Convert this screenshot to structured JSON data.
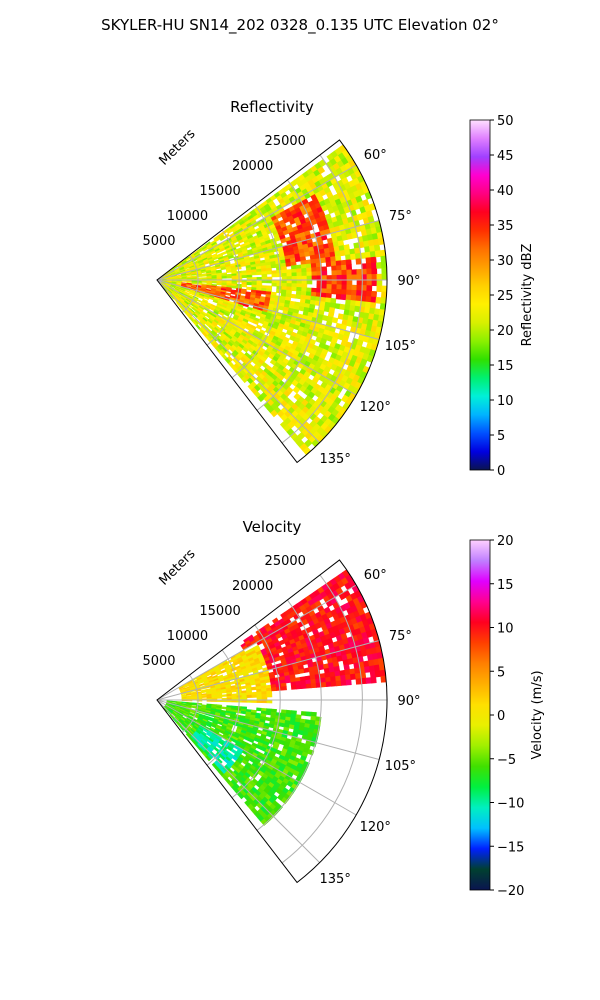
{
  "figure": {
    "suptitle": "SKYLER-HU  SN14_202  0328_0.135 UTC Elevation 02°"
  },
  "chart_data": [
    {
      "type": "heatmap",
      "subtype": "polar-sector",
      "title": "Reflectivity",
      "range_axis_label": "Meters",
      "range_ticks": [
        5000,
        10000,
        15000,
        20000,
        25000
      ],
      "range_tick_labels": [
        "5000",
        "10000",
        "15000",
        "20000",
        "25000"
      ],
      "range_max": 28000,
      "theta_range_deg": [
        52.5,
        142.5
      ],
      "theta_ticks": [
        60,
        75,
        90,
        105,
        120,
        135
      ],
      "theta_tick_labels": [
        "60°",
        "75°",
        "90°",
        "105°",
        "120°",
        "135°"
      ],
      "grid": true,
      "colorbar": {
        "label": "Reflectivity dBZ",
        "min": 0,
        "max": 50,
        "ticks": [
          0,
          5,
          10,
          15,
          20,
          25,
          30,
          35,
          40,
          45,
          50
        ],
        "tick_labels": [
          "0",
          "5",
          "10",
          "15",
          "20",
          "25",
          "30",
          "35",
          "40",
          "45",
          "50"
        ],
        "stops": [
          "#0a1450",
          "#0000e0",
          "#0050ff",
          "#00b4ff",
          "#00f0d8",
          "#00f070",
          "#30e000",
          "#8cf000",
          "#d8f000",
          "#fff000",
          "#ffd000",
          "#ffa000",
          "#ff7000",
          "#ff3000",
          "#ff0020",
          "#ff0080",
          "#ff00d0",
          "#a040ff",
          "#e080ff",
          "#ffe0ff"
        ]
      },
      "data_features": [
        {
          "name": "echo band",
          "theta_deg": [
            62,
            84
          ],
          "range_m": [
            16000,
            22000
          ],
          "value": 33
        },
        {
          "name": "echo band",
          "theta_deg": [
            84,
            96
          ],
          "range_m": [
            19000,
            27000
          ],
          "value": 34
        },
        {
          "name": "echo band",
          "theta_deg": [
            96,
            106
          ],
          "range_m": [
            3000,
            14000
          ],
          "value": 33
        },
        {
          "name": "sector fill",
          "theta_deg": [
            54,
            140
          ],
          "range_m": [
            500,
            28000
          ],
          "value": 22
        }
      ]
    },
    {
      "type": "heatmap",
      "subtype": "polar-sector",
      "title": "Velocity",
      "range_axis_label": "Meters",
      "range_ticks": [
        5000,
        10000,
        15000,
        20000,
        25000
      ],
      "range_tick_labels": [
        "5000",
        "10000",
        "15000",
        "20000",
        "25000"
      ],
      "range_max": 28000,
      "theta_range_deg": [
        52.5,
        142.5
      ],
      "theta_ticks": [
        60,
        75,
        90,
        105,
        120,
        135
      ],
      "theta_tick_labels": [
        "60°",
        "75°",
        "90°",
        "105°",
        "120°",
        "135°"
      ],
      "grid": true,
      "colorbar": {
        "label": "Velocity (m/s)",
        "min": -20,
        "max": 20,
        "ticks": [
          -20,
          -15,
          -10,
          -5,
          0,
          5,
          10,
          15,
          20
        ],
        "tick_labels": [
          "−20",
          "−15",
          "−10",
          "−5",
          "0",
          "5",
          "10",
          "15",
          "20"
        ],
        "stops": [
          "#0a1450",
          "#004030",
          "#0020ff",
          "#00c0ff",
          "#00f0c0",
          "#00f040",
          "#40e000",
          "#a0f000",
          "#e8f000",
          "#ffe000",
          "#ffb000",
          "#ff8000",
          "#ff4000",
          "#ff0020",
          "#ff0090",
          "#e000ff",
          "#c080ff",
          "#ffd0ff"
        ]
      },
      "data_features": [
        {
          "name": "outbound region",
          "theta_deg": [
            55,
            85
          ],
          "range_m": [
            12000,
            28000
          ],
          "value": 10
        },
        {
          "name": "weak outbound",
          "theta_deg": [
            60,
            92
          ],
          "range_m": [
            3000,
            14000
          ],
          "value": 1
        },
        {
          "name": "inbound region",
          "theta_deg": [
            95,
            140
          ],
          "range_m": [
            1000,
            20000
          ],
          "value": -6
        },
        {
          "name": "strong inbound",
          "theta_deg": [
            120,
            138
          ],
          "range_m": [
            6000,
            12000
          ],
          "value": -10
        }
      ]
    }
  ]
}
